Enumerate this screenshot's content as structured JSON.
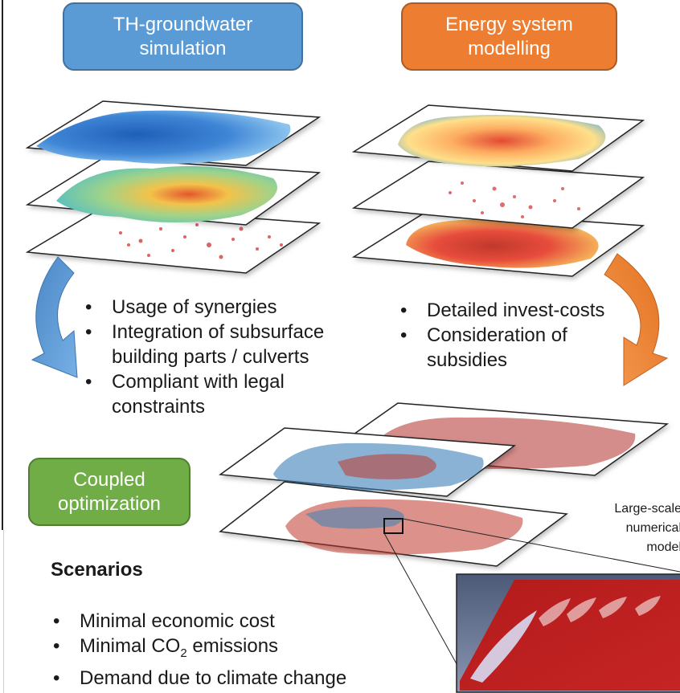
{
  "boxes": {
    "th_groundwater": {
      "line1": "TH-groundwater",
      "line2": "simulation",
      "color": "#5b9bd5"
    },
    "energy_system": {
      "line1": "Energy system",
      "line2": "modelling",
      "color": "#ed7d31"
    },
    "coupled": {
      "line1": "Coupled",
      "line2": "optimization",
      "color": "#70ad47"
    }
  },
  "left_bullets": [
    "Usage of synergies",
    "Integration of subsurface building parts / culverts",
    "Compliant with legal constraints"
  ],
  "left_bullet_lines": {
    "b2_line1": "Integration of subsurface",
    "b2_line2": "building parts / culverts",
    "b3_line1": "Compliant with legal",
    "b3_line2": "constraints"
  },
  "right_bullets": {
    "b1": "Detailed invest-costs",
    "b2_line1": "Consideration of",
    "b2_line2": "subsidies"
  },
  "scenarios": {
    "title": "Scenarios",
    "items": [
      "Minimal economic cost",
      "Demand due to climate change"
    ],
    "co2": {
      "prefix": "Minimal CO",
      "sub": "2",
      "suffix": " emissions"
    }
  },
  "large_scale_note": "Large-scale\nnumerical\nmodel",
  "colors": {
    "arrow_blue": "#5b9bd5",
    "arrow_orange": "#ed7d31",
    "map_blue": "#4a90d9",
    "map_red": "#d7191c",
    "map_yellow": "#fee08b"
  }
}
